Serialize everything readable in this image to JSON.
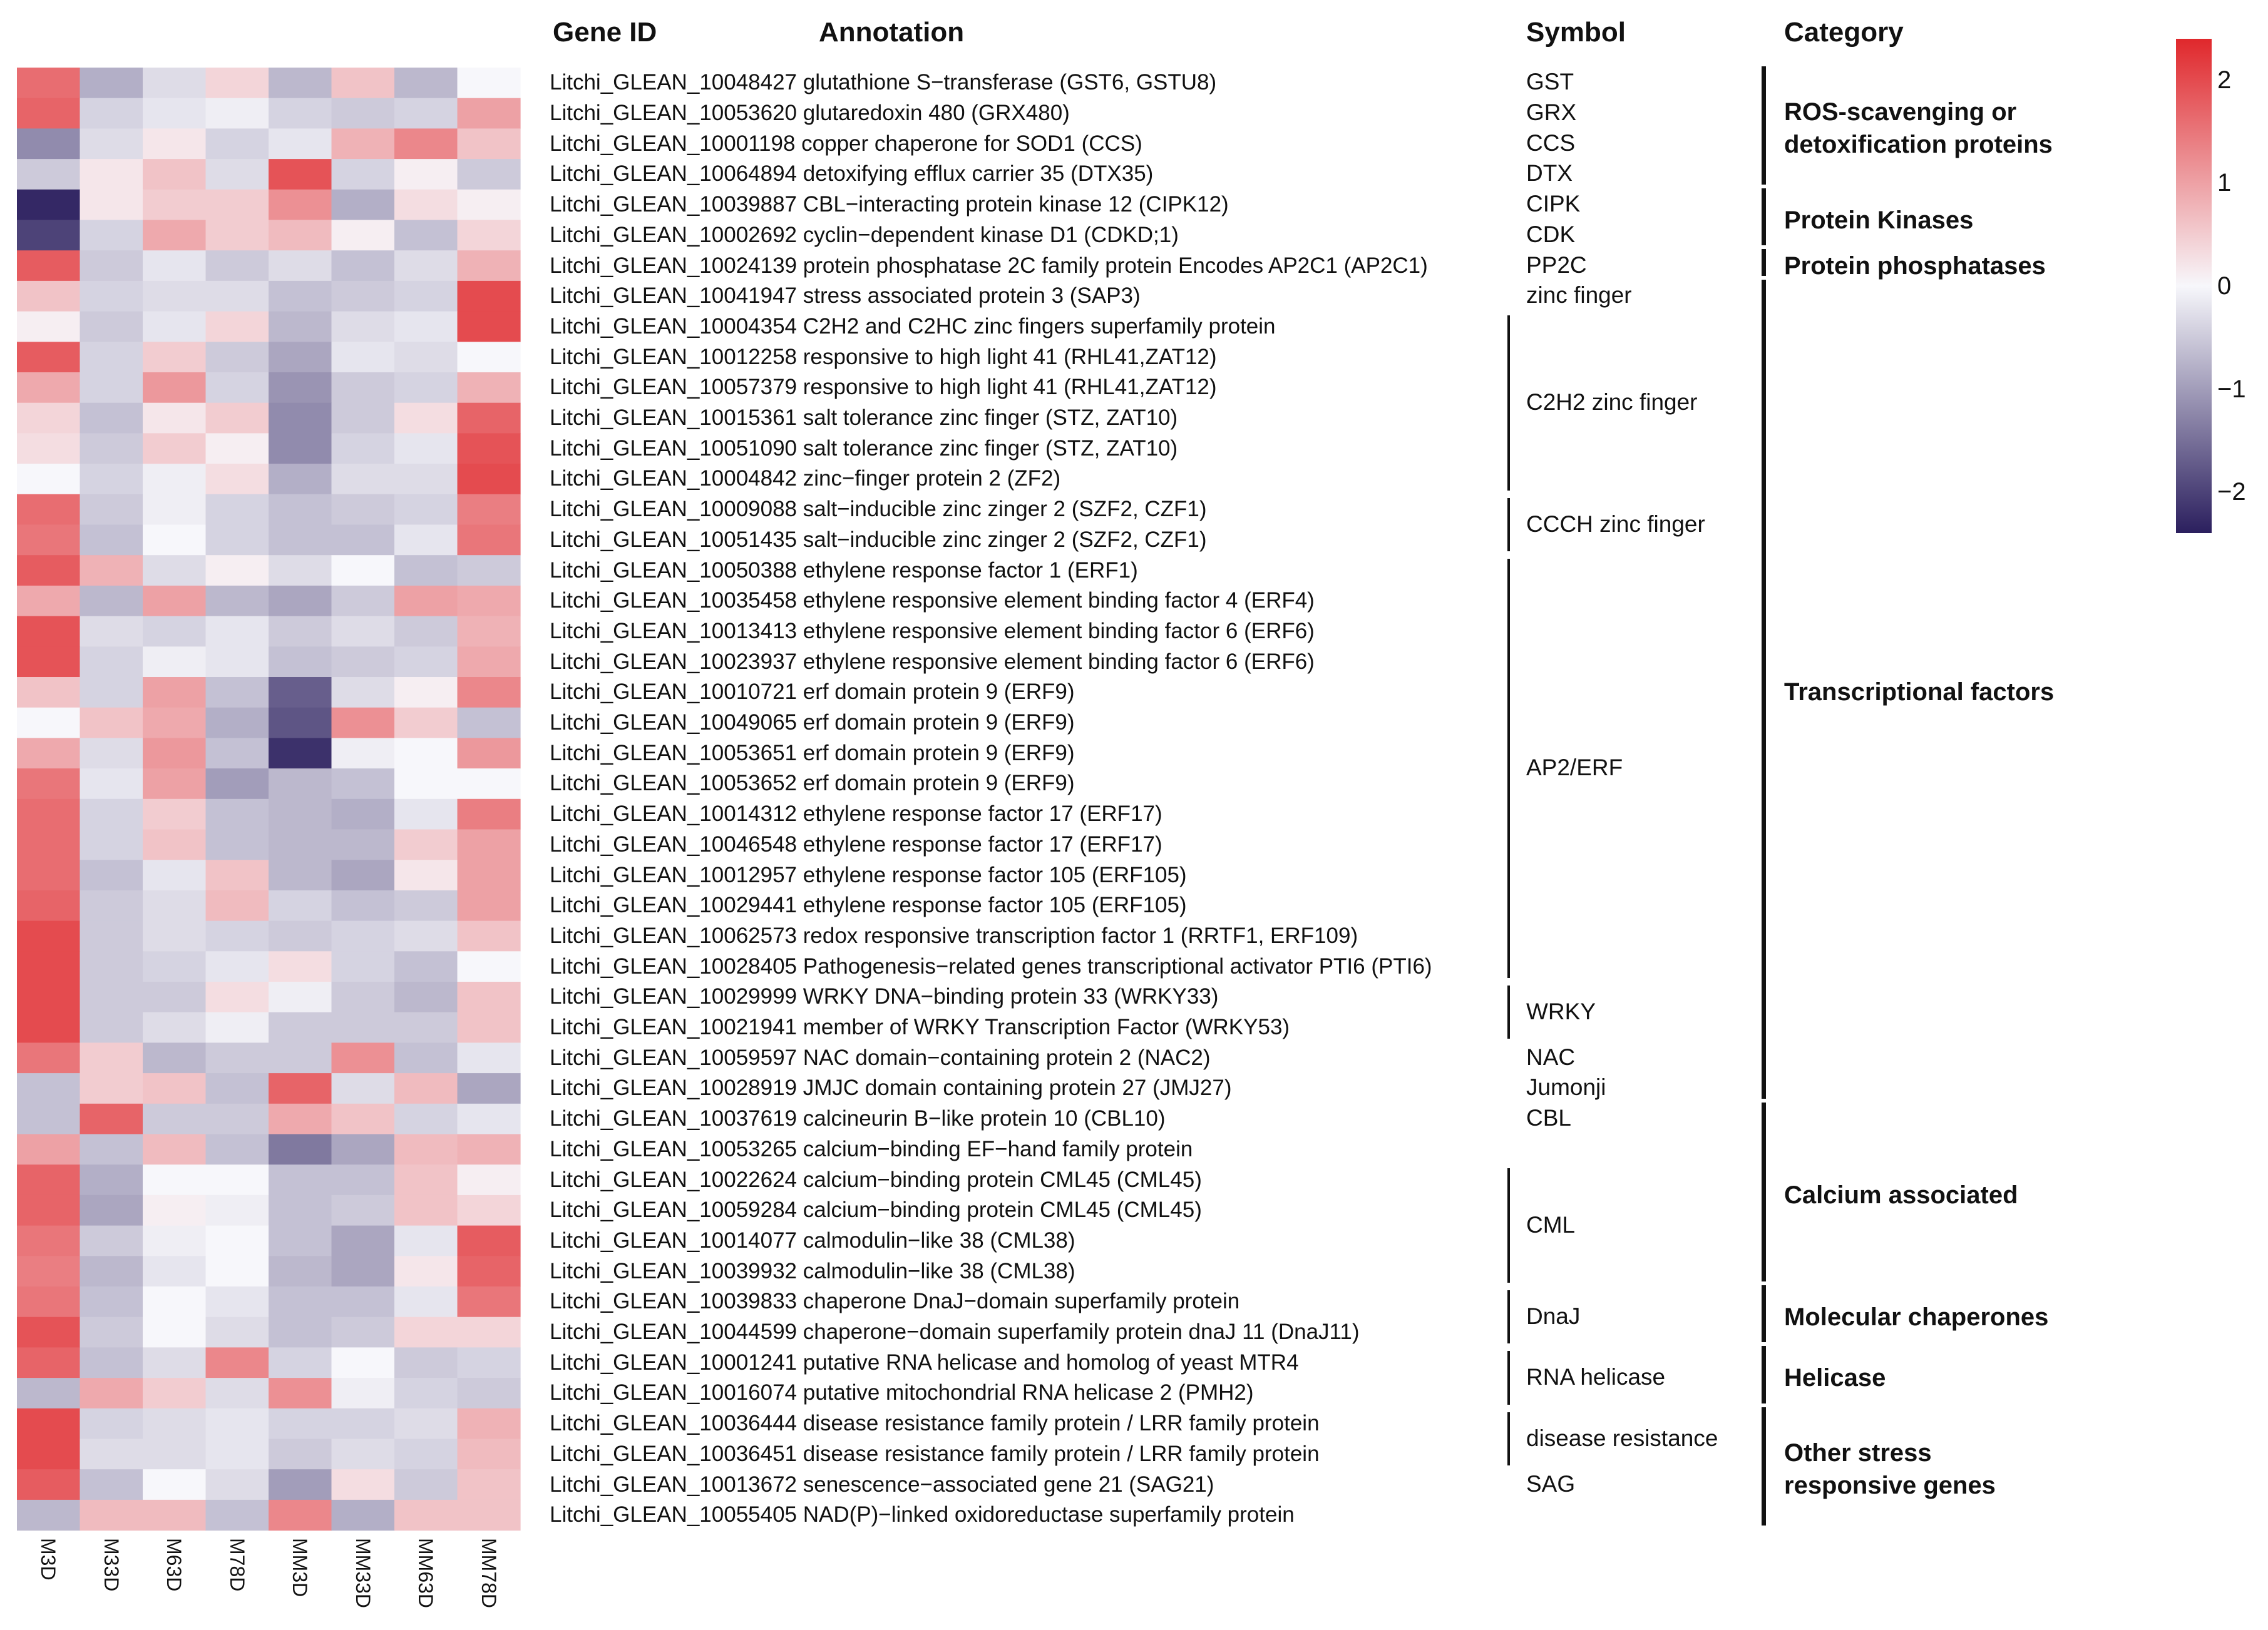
{
  "headers": {
    "gene_id": "Gene ID",
    "annotation": "Annotation",
    "symbol": "Symbol",
    "category": "Category"
  },
  "chart_data": {
    "type": "heatmap",
    "columns": [
      "M3D",
      "M33D",
      "M63D",
      "M78D",
      "MM3D",
      "MM33D",
      "MM63D",
      "MM78D"
    ],
    "rows": [
      {
        "id": "Litchi_GLEAN_10048427",
        "annotation": "glutathione S−transferase (GST6, GSTU8)",
        "values": [
          1.6,
          -0.8,
          -0.3,
          0.4,
          -0.7,
          0.6,
          -0.7,
          0.0
        ]
      },
      {
        "id": "Litchi_GLEAN_10053620",
        "annotation": "glutaredoxin 480 (GRX480)",
        "values": [
          1.7,
          -0.4,
          -0.2,
          -0.1,
          -0.4,
          -0.5,
          -0.4,
          1.0
        ]
      },
      {
        "id": "Litchi_GLEAN_10001198",
        "annotation": "copper chaperone for SOD1 (CCS)",
        "values": [
          -1.2,
          -0.3,
          0.2,
          -0.4,
          -0.2,
          0.8,
          1.3,
          0.6
        ]
      },
      {
        "id": "Litchi_GLEAN_10064894",
        "annotation": "detoxifying efflux carrier 35 (DTX35)",
        "values": [
          -0.5,
          0.2,
          0.6,
          -0.3,
          1.9,
          -0.4,
          0.1,
          -0.5
        ]
      },
      {
        "id": "Litchi_GLEAN_10039887",
        "annotation": "CBL−interacting protein kinase 12 (CIPK12)",
        "values": [
          -2.3,
          0.2,
          0.5,
          0.5,
          1.2,
          -0.8,
          0.3,
          0.1
        ]
      },
      {
        "id": "Litchi_GLEAN_10002692",
        "annotation": "cyclin−dependent kinase D1 (CDKD;1)",
        "values": [
          -2.0,
          -0.4,
          0.9,
          0.5,
          0.7,
          0.1,
          -0.6,
          0.4
        ]
      },
      {
        "id": "Litchi_GLEAN_10024139",
        "annotation": "protein phosphatase 2C family protein Encodes AP2C1 (AP2C1)",
        "values": [
          1.8,
          -0.5,
          -0.2,
          -0.5,
          -0.3,
          -0.6,
          -0.3,
          0.8
        ]
      },
      {
        "id": "Litchi_GLEAN_10041947",
        "annotation": "stress associated protein 3 (SAP3)",
        "values": [
          0.6,
          -0.4,
          -0.3,
          -0.3,
          -0.6,
          -0.5,
          -0.4,
          2.0
        ]
      },
      {
        "id": "Litchi_GLEAN_10004354",
        "annotation": "C2H2 and C2HC zinc fingers superfamily protein",
        "values": [
          0.1,
          -0.5,
          -0.2,
          0.4,
          -0.7,
          -0.3,
          -0.2,
          2.0
        ]
      },
      {
        "id": "Litchi_GLEAN_10012258",
        "annotation": "responsive to high light 41 (RHL41,ZAT12)",
        "values": [
          1.8,
          -0.4,
          0.5,
          -0.5,
          -0.9,
          -0.2,
          -0.3,
          0.0
        ]
      },
      {
        "id": "Litchi_GLEAN_10057379",
        "annotation": "responsive to high light 41 (RHL41,ZAT12)",
        "values": [
          0.9,
          -0.4,
          1.1,
          -0.4,
          -1.1,
          -0.5,
          -0.4,
          0.8
        ]
      },
      {
        "id": "Litchi_GLEAN_10015361",
        "annotation": "salt tolerance zinc finger (STZ, ZAT10)",
        "values": [
          0.4,
          -0.6,
          0.2,
          0.5,
          -1.2,
          -0.5,
          0.3,
          1.7
        ]
      },
      {
        "id": "Litchi_GLEAN_10051090",
        "annotation": "salt tolerance zinc finger (STZ, ZAT10)",
        "values": [
          0.3,
          -0.5,
          0.5,
          0.1,
          -1.2,
          -0.4,
          -0.2,
          1.9
        ]
      },
      {
        "id": "Litchi_GLEAN_10004842",
        "annotation": "zinc−finger protein 2 (ZF2)",
        "values": [
          0.0,
          -0.4,
          -0.1,
          0.3,
          -0.8,
          -0.3,
          -0.3,
          2.0
        ]
      },
      {
        "id": "Litchi_GLEAN_10009088",
        "annotation": "salt−inducible zinc zinger 2 (SZF2, CZF1)",
        "values": [
          1.6,
          -0.5,
          -0.1,
          -0.4,
          -0.6,
          -0.5,
          -0.4,
          1.4
        ]
      },
      {
        "id": "Litchi_GLEAN_10051435",
        "annotation": "salt−inducible zinc zinger 2 (SZF2, CZF1)",
        "values": [
          1.5,
          -0.6,
          0.0,
          -0.4,
          -0.6,
          -0.6,
          -0.2,
          1.5
        ]
      },
      {
        "id": "Litchi_GLEAN_10050388",
        "annotation": "ethylene response factor 1 (ERF1)",
        "values": [
          1.8,
          0.8,
          -0.3,
          0.1,
          -0.3,
          0.0,
          -0.6,
          -0.5
        ]
      },
      {
        "id": "Litchi_GLEAN_10035458",
        "annotation": "ethylene responsive element binding factor 4 (ERF4)",
        "values": [
          0.9,
          -0.7,
          1.0,
          -0.7,
          -0.9,
          -0.5,
          1.0,
          0.9
        ]
      },
      {
        "id": "Litchi_GLEAN_10013413",
        "annotation": "ethylene responsive element binding factor 6 (ERF6)",
        "values": [
          1.9,
          -0.3,
          -0.4,
          -0.2,
          -0.5,
          -0.3,
          -0.5,
          0.8
        ]
      },
      {
        "id": "Litchi_GLEAN_10023937",
        "annotation": "ethylene responsive element binding factor 6 (ERF6)",
        "values": [
          1.9,
          -0.4,
          -0.1,
          -0.2,
          -0.6,
          -0.5,
          -0.4,
          0.9
        ]
      },
      {
        "id": "Litchi_GLEAN_10010721",
        "annotation": "erf domain protein 9 (ERF9)",
        "values": [
          0.6,
          -0.4,
          1.0,
          -0.6,
          -1.7,
          -0.3,
          0.1,
          1.3
        ]
      },
      {
        "id": "Litchi_GLEAN_10049065",
        "annotation": "erf domain protein 9 (ERF9)",
        "values": [
          0.0,
          0.6,
          0.9,
          -0.8,
          -1.8,
          1.2,
          0.5,
          -0.6
        ]
      },
      {
        "id": "Litchi_GLEAN_10053651",
        "annotation": "erf domain protein 9 (ERF9)",
        "values": [
          0.9,
          -0.3,
          1.1,
          -0.6,
          -2.2,
          -0.1,
          0.0,
          1.1
        ]
      },
      {
        "id": "Litchi_GLEAN_10053652",
        "annotation": "erf domain protein 9 (ERF9)",
        "values": [
          1.5,
          -0.2,
          1.0,
          -1.0,
          -0.7,
          -0.6,
          0.0,
          0.0
        ]
      },
      {
        "id": "Litchi_GLEAN_10014312",
        "annotation": "ethylene response factor 17 (ERF17)",
        "values": [
          1.6,
          -0.4,
          0.5,
          -0.6,
          -0.7,
          -0.8,
          -0.2,
          1.4
        ]
      },
      {
        "id": "Litchi_GLEAN_10046548",
        "annotation": "ethylene response factor 17 (ERF17)",
        "values": [
          1.6,
          -0.4,
          0.6,
          -0.6,
          -0.7,
          -0.7,
          0.5,
          1.0
        ]
      },
      {
        "id": "Litchi_GLEAN_10012957",
        "annotation": "ethylene response factor 105 (ERF105)",
        "values": [
          1.6,
          -0.6,
          -0.2,
          0.6,
          -0.7,
          -0.9,
          0.2,
          1.0
        ]
      },
      {
        "id": "Litchi_GLEAN_10029441",
        "annotation": "ethylene response factor 105 (ERF105)",
        "values": [
          1.7,
          -0.5,
          -0.3,
          0.7,
          -0.4,
          -0.6,
          -0.5,
          1.0
        ]
      },
      {
        "id": "Litchi_GLEAN_10062573",
        "annotation": "redox responsive transcription factor 1 (RRTF1, ERF109)",
        "values": [
          2.0,
          -0.5,
          -0.3,
          -0.4,
          -0.5,
          -0.4,
          -0.3,
          0.6
        ]
      },
      {
        "id": "Litchi_GLEAN_10028405",
        "annotation": "Pathogenesis−related genes transcriptional activator PTI6 (PTI6)",
        "values": [
          2.0,
          -0.5,
          -0.4,
          -0.2,
          0.3,
          -0.4,
          -0.6,
          0.0
        ]
      },
      {
        "id": "Litchi_GLEAN_10029999",
        "annotation": "WRKY DNA−binding protein 33 (WRKY33)",
        "values": [
          2.0,
          -0.5,
          -0.5,
          0.3,
          -0.1,
          -0.5,
          -0.7,
          0.6
        ]
      },
      {
        "id": "Litchi_GLEAN_10021941",
        "annotation": "member of WRKY Transcription Factor (WRKY53)",
        "values": [
          2.0,
          -0.5,
          -0.3,
          -0.1,
          -0.5,
          -0.5,
          -0.5,
          0.6
        ]
      },
      {
        "id": "Litchi_GLEAN_10059597",
        "annotation": "NAC domain−containing protein 2 (NAC2)",
        "values": [
          1.5,
          0.5,
          -0.7,
          -0.5,
          -0.5,
          1.2,
          -0.6,
          -0.2
        ]
      },
      {
        "id": "Litchi_GLEAN_10028919",
        "annotation": "JMJC domain containing protein 27 (JMJ27)",
        "values": [
          -0.6,
          0.5,
          0.6,
          -0.6,
          1.7,
          -0.3,
          0.7,
          -0.9
        ]
      },
      {
        "id": "Litchi_GLEAN_10037619",
        "annotation": "calcineurin B−like protein 10 (CBL10)",
        "values": [
          -0.6,
          1.7,
          -0.5,
          -0.5,
          0.9,
          0.6,
          -0.4,
          -0.2
        ]
      },
      {
        "id": "Litchi_GLEAN_10053265",
        "annotation": "calcium−binding EF−hand family protein",
        "values": [
          1.0,
          -0.6,
          0.7,
          -0.6,
          -1.4,
          -0.9,
          0.7,
          0.8
        ]
      },
      {
        "id": "Litchi_GLEAN_10022624",
        "annotation": "calcium−binding protein CML45 (CML45)",
        "values": [
          1.7,
          -0.8,
          0.0,
          0.0,
          -0.6,
          -0.6,
          0.6,
          0.1
        ]
      },
      {
        "id": "Litchi_GLEAN_10059284",
        "annotation": "calcium−binding protein CML45 (CML45)",
        "values": [
          1.7,
          -0.9,
          0.1,
          -0.1,
          -0.6,
          -0.5,
          0.6,
          0.4
        ]
      },
      {
        "id": "Litchi_GLEAN_10014077",
        "annotation": "calmodulin−like 38 (CML38)",
        "values": [
          1.5,
          -0.5,
          -0.1,
          0.0,
          -0.6,
          -0.9,
          -0.2,
          1.8
        ]
      },
      {
        "id": "Litchi_GLEAN_10039932",
        "annotation": "calmodulin−like 38 (CML38)",
        "values": [
          1.4,
          -0.7,
          -0.2,
          0.0,
          -0.7,
          -0.9,
          0.2,
          1.7
        ]
      },
      {
        "id": "Litchi_GLEAN_10039833",
        "annotation": "chaperone DnaJ−domain superfamily protein",
        "values": [
          1.5,
          -0.6,
          0.0,
          -0.2,
          -0.6,
          -0.6,
          -0.2,
          1.5
        ]
      },
      {
        "id": "Litchi_GLEAN_10044599",
        "annotation": "chaperone−domain superfamily protein dnaJ 11 (DnaJ11)",
        "values": [
          1.9,
          -0.5,
          0.0,
          -0.3,
          -0.6,
          -0.5,
          0.4,
          0.4
        ]
      },
      {
        "id": "Litchi_GLEAN_10001241",
        "annotation": "putative RNA helicase and homolog of yeast MTR4",
        "values": [
          1.7,
          -0.6,
          -0.3,
          1.3,
          -0.4,
          0.0,
          -0.5,
          -0.4
        ]
      },
      {
        "id": "Litchi_GLEAN_10016074",
        "annotation": "putative mitochondrial RNA helicase 2 (PMH2)",
        "values": [
          -0.7,
          0.9,
          0.5,
          -0.3,
          1.2,
          -0.1,
          -0.4,
          -0.5
        ]
      },
      {
        "id": "Litchi_GLEAN_10036444",
        "annotation": "disease resistance family protein / LRR family protein",
        "values": [
          2.0,
          -0.4,
          -0.3,
          -0.2,
          -0.4,
          -0.4,
          -0.3,
          0.8
        ]
      },
      {
        "id": "Litchi_GLEAN_10036451",
        "annotation": "disease resistance family protein / LRR family protein",
        "values": [
          2.0,
          -0.3,
          -0.3,
          -0.2,
          -0.5,
          -0.3,
          -0.4,
          0.7
        ]
      },
      {
        "id": "Litchi_GLEAN_10013672",
        "annotation": "senescence−associated gene 21 (SAG21)",
        "values": [
          1.8,
          -0.6,
          0.0,
          -0.3,
          -1.0,
          0.3,
          -0.5,
          0.6
        ]
      },
      {
        "id": "Litchi_GLEAN_10055405",
        "annotation": "NAD(P)−linked oxidoreductase superfamily protein",
        "values": [
          -0.7,
          0.7,
          0.7,
          -0.6,
          1.3,
          -0.8,
          0.6,
          0.6
        ]
      }
    ],
    "symbols": [
      {
        "label": "GST",
        "rows": [
          0,
          0
        ]
      },
      {
        "label": "GRX",
        "rows": [
          1,
          1
        ]
      },
      {
        "label": "CCS",
        "rows": [
          2,
          2
        ]
      },
      {
        "label": "DTX",
        "rows": [
          3,
          3
        ]
      },
      {
        "label": "CIPK",
        "rows": [
          4,
          4
        ]
      },
      {
        "label": "CDK",
        "rows": [
          5,
          5
        ]
      },
      {
        "label": "PP2C",
        "rows": [
          6,
          6
        ]
      },
      {
        "label": "zinc finger",
        "rows": [
          7,
          7
        ]
      },
      {
        "label": "C2H2 zinc finger",
        "rows": [
          8,
          13
        ]
      },
      {
        "label": "CCCH zinc finger",
        "rows": [
          14,
          15
        ]
      },
      {
        "label": "AP2/ERF",
        "rows": [
          16,
          29
        ]
      },
      {
        "label": "WRKY",
        "rows": [
          30,
          31
        ]
      },
      {
        "label": "NAC",
        "rows": [
          32,
          32
        ]
      },
      {
        "label": "Jumonji",
        "rows": [
          33,
          33
        ]
      },
      {
        "label": "CBL",
        "rows": [
          34,
          34
        ]
      },
      {
        "label": "CML",
        "rows": [
          36,
          39
        ]
      },
      {
        "label": "DnaJ",
        "rows": [
          40,
          41
        ]
      },
      {
        "label": "RNA helicase",
        "rows": [
          42,
          43
        ]
      },
      {
        "label": "disease resistance",
        "rows": [
          44,
          45
        ]
      },
      {
        "label": "SAG",
        "rows": [
          46,
          46
        ]
      }
    ],
    "categories": [
      {
        "lines": [
          "ROS-scavenging or",
          "detoxification proteins"
        ],
        "rows": [
          0,
          3
        ]
      },
      {
        "lines": [
          "Protein Kinases"
        ],
        "rows": [
          4,
          5
        ]
      },
      {
        "lines": [
          "Protein phosphatases"
        ],
        "rows": [
          6,
          6
        ]
      },
      {
        "lines": [
          "Transcriptional factors"
        ],
        "rows": [
          7,
          33
        ]
      },
      {
        "lines": [
          "Calcium associated"
        ],
        "rows": [
          34,
          39
        ]
      },
      {
        "lines": [
          "Molecular chaperones"
        ],
        "rows": [
          40,
          41
        ]
      },
      {
        "lines": [
          "Helicase"
        ],
        "rows": [
          42,
          43
        ]
      },
      {
        "lines": [
          "Other stress",
          "responsive genes"
        ],
        "rows": [
          44,
          47
        ]
      }
    ],
    "colorbar": {
      "min": -2.4,
      "max": 2.4,
      "ticks": [
        "2",
        "1",
        "0",
        "−1",
        "−2"
      ],
      "tick_values": [
        2,
        1,
        0,
        -1,
        -2
      ]
    },
    "colors": {
      "low": "#2b1f5e",
      "mid": "#f7f7fb",
      "high": "#e0282c"
    }
  }
}
